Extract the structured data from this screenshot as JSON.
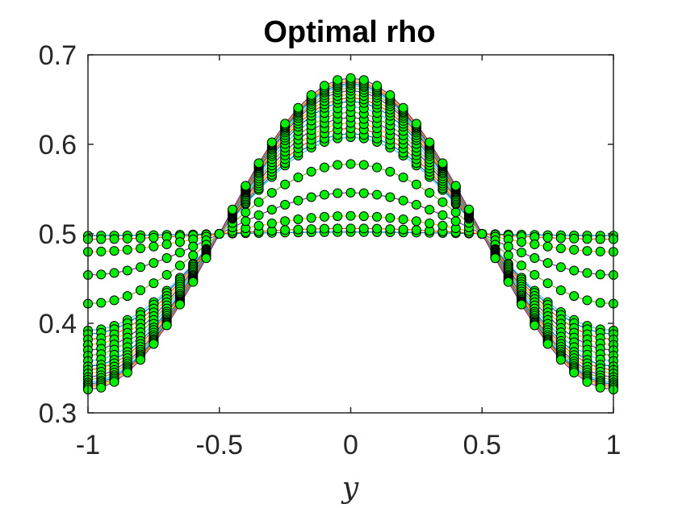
{
  "chart_data": {
    "type": "scatter",
    "title": "Optimal rho",
    "xlabel": "y",
    "ylabel": "",
    "xlim": [
      -1,
      1
    ],
    "ylim": [
      0.3,
      0.7
    ],
    "xticks": [
      -1,
      -0.5,
      0,
      0.5,
      1
    ],
    "yticks": [
      0.3,
      0.4,
      0.5,
      0.6,
      0.7
    ],
    "xtick_labels": [
      "-1",
      "-0.5",
      "0",
      "0.5",
      "1"
    ],
    "ytick_labels": [
      "0.3",
      "0.4",
      "0.5",
      "0.6",
      "0.7"
    ],
    "grid": false,
    "legend": "none",
    "marker_color": "#00ee00",
    "marker_edge_color": "#000000",
    "line_colors": [
      "#0072bd",
      "#d95319",
      "#edb120",
      "#7e2f8e",
      "#77ac30",
      "#4dbeee"
    ],
    "x_samples": 41,
    "series": [
      {
        "amplitude": 0.002
      },
      {
        "amplitude": 0.006
      },
      {
        "amplitude": 0.02
      },
      {
        "amplitude": 0.046
      },
      {
        "amplitude": 0.078
      },
      {
        "amplitude": 0.108
      },
      {
        "amplitude": 0.112
      },
      {
        "amplitude": 0.118
      },
      {
        "amplitude": 0.124
      },
      {
        "amplitude": 0.13
      },
      {
        "amplitude": 0.136
      },
      {
        "amplitude": 0.142
      },
      {
        "amplitude": 0.148
      },
      {
        "amplitude": 0.152
      },
      {
        "amplitude": 0.156
      },
      {
        "amplitude": 0.16
      },
      {
        "amplitude": 0.163
      },
      {
        "amplitude": 0.166
      },
      {
        "amplitude": 0.168
      },
      {
        "amplitude": 0.17
      },
      {
        "amplitude": 0.172
      },
      {
        "amplitude": 0.174
      }
    ]
  }
}
